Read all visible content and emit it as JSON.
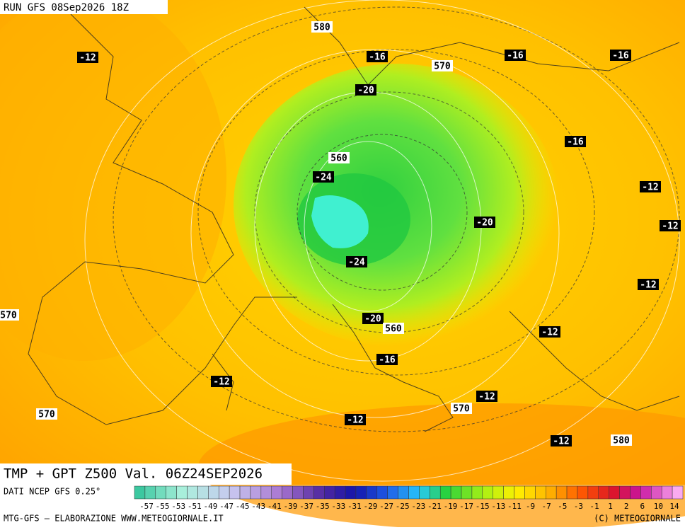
{
  "header": {
    "run": "RUN GFS 08Sep2026 18Z"
  },
  "map": {
    "labels": [
      "580",
      "-12",
      "-16",
      "-16",
      "-16",
      "570",
      "-20",
      "-16",
      "560",
      "-24",
      "-12",
      "-20",
      "-12",
      "-24",
      "-12",
      "570",
      "-20",
      "560",
      "-12",
      "-16",
      "-12",
      "-12",
      "570",
      "570",
      "-12",
      "-12",
      "580"
    ]
  },
  "footer": {
    "title": "TMP + GPT Z500 Val. 06Z24SEP2026",
    "source": "DATI NCEP GFS 0.25°",
    "scale": [
      "-57",
      "-55",
      "-53",
      "-51",
      "-49",
      "-47",
      "-45",
      "-43",
      "-41",
      "-39",
      "-37",
      "-35",
      "-33",
      "-31",
      "-29",
      "-27",
      "-25",
      "-23",
      "-21",
      "-19",
      "-17",
      "-15",
      "-13",
      "-11",
      "-9",
      "-7",
      "-5",
      "-3",
      "-1",
      "1",
      "2",
      "6",
      "10",
      "14"
    ],
    "credit": "MTG-GFS — ELABORAZIONE WWW.METEOGIORNALE.IT",
    "copyright": "(C) METEOGIORNALE"
  }
}
